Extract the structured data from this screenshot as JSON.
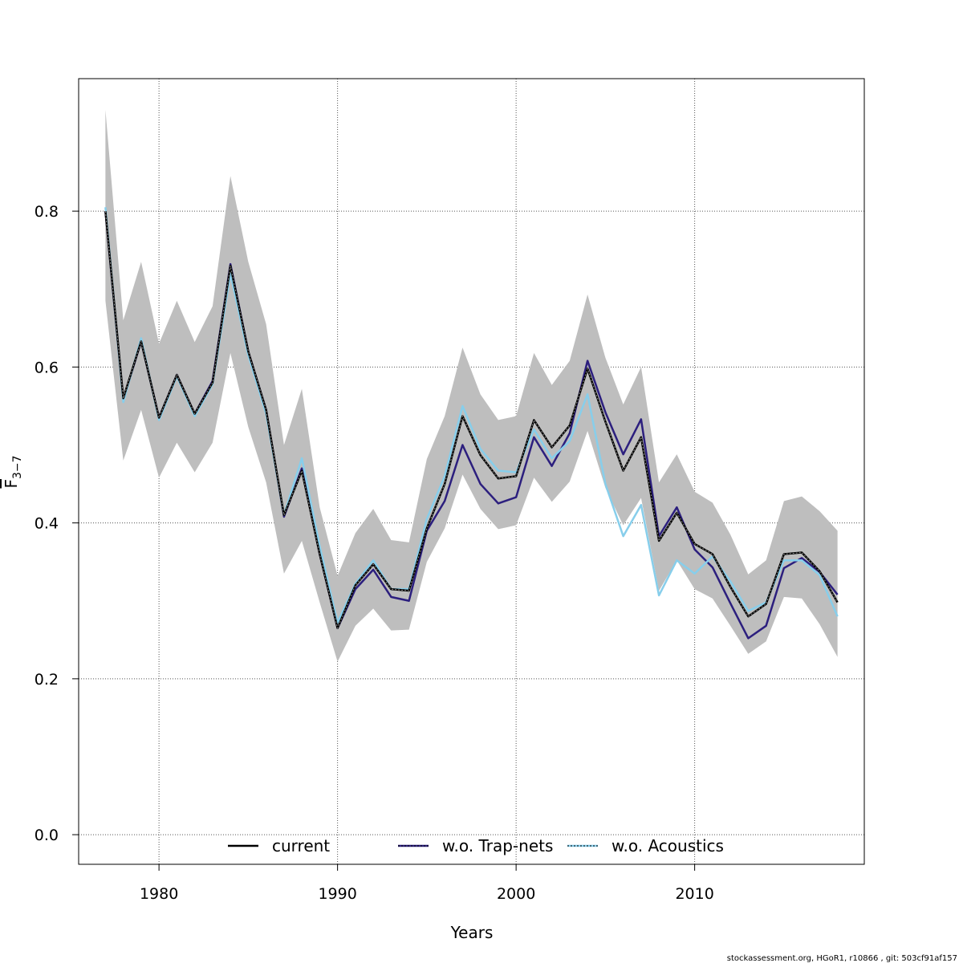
{
  "chart_data": {
    "type": "line",
    "xlabel": "Years",
    "ylabel_main": "F",
    "ylabel_sub": "3−7",
    "xlim": [
      1975.5,
      2019.5
    ],
    "ylim": [
      -0.038,
      0.97
    ],
    "xticks": [
      1980,
      1990,
      2000,
      2010
    ],
    "yticks": [
      0.0,
      0.2,
      0.4,
      0.6,
      0.8
    ],
    "ytick_labels": [
      "0.0",
      "0.2",
      "0.4",
      "0.6",
      "0.8"
    ],
    "grid": true,
    "legend_placement": "bottom",
    "x": [
      1977,
      1978,
      1979,
      1980,
      1981,
      1982,
      1983,
      1984,
      1985,
      1986,
      1987,
      1988,
      1989,
      1990,
      1991,
      1992,
      1993,
      1994,
      1995,
      1996,
      1997,
      1998,
      1999,
      2000,
      2001,
      2002,
      2003,
      2004,
      2005,
      2006,
      2007,
      2008,
      2009,
      2010,
      2011,
      2012,
      2013,
      2014,
      2015,
      2016,
      2017,
      2018
    ],
    "band": {
      "color": "#bebebe",
      "upper": [
        0.93,
        0.66,
        0.735,
        0.63,
        0.685,
        0.632,
        0.678,
        0.845,
        0.735,
        0.655,
        0.5,
        0.572,
        0.42,
        0.332,
        0.387,
        0.418,
        0.378,
        0.375,
        0.482,
        0.537,
        0.625,
        0.565,
        0.532,
        0.537,
        0.618,
        0.577,
        0.608,
        0.693,
        0.612,
        0.552,
        0.6,
        0.452,
        0.488,
        0.44,
        0.426,
        0.385,
        0.334,
        0.352,
        0.428,
        0.434,
        0.415,
        0.39
      ],
      "lower": [
        0.685,
        0.48,
        0.545,
        0.458,
        0.503,
        0.465,
        0.503,
        0.618,
        0.523,
        0.452,
        0.335,
        0.377,
        0.298,
        0.222,
        0.268,
        0.29,
        0.262,
        0.263,
        0.35,
        0.393,
        0.462,
        0.418,
        0.392,
        0.397,
        0.458,
        0.427,
        0.453,
        0.518,
        0.445,
        0.397,
        0.432,
        0.313,
        0.352,
        0.315,
        0.303,
        0.268,
        0.232,
        0.248,
        0.305,
        0.303,
        0.27,
        0.228
      ]
    },
    "series": [
      {
        "name": "current",
        "color": "#000000",
        "values": [
          0.8,
          0.56,
          0.633,
          0.535,
          0.59,
          0.54,
          0.58,
          0.73,
          0.62,
          0.545,
          0.41,
          0.467,
          0.36,
          0.265,
          0.32,
          0.347,
          0.315,
          0.313,
          0.393,
          0.45,
          0.537,
          0.487,
          0.457,
          0.46,
          0.532,
          0.497,
          0.525,
          0.598,
          0.53,
          0.467,
          0.51,
          0.377,
          0.413,
          0.373,
          0.36,
          0.318,
          0.28,
          0.296,
          0.36,
          0.362,
          0.338,
          0.298
        ]
      },
      {
        "name": "w.o. Trap-nets",
        "color": "#2c1f7e",
        "values": [
          0.8,
          0.558,
          0.633,
          0.535,
          0.59,
          0.54,
          0.582,
          0.732,
          0.62,
          0.545,
          0.408,
          0.47,
          0.36,
          0.265,
          0.315,
          0.34,
          0.305,
          0.3,
          0.39,
          0.428,
          0.5,
          0.45,
          0.425,
          0.433,
          0.51,
          0.473,
          0.515,
          0.608,
          0.542,
          0.488,
          0.533,
          0.383,
          0.42,
          0.366,
          0.343,
          0.297,
          0.252,
          0.268,
          0.342,
          0.355,
          0.337,
          0.308
        ]
      },
      {
        "name": "w.o. Acoustics",
        "color": "#87ceeb",
        "values": [
          0.805,
          0.555,
          0.637,
          0.532,
          0.588,
          0.537,
          0.578,
          0.72,
          0.615,
          0.54,
          0.41,
          0.483,
          0.37,
          0.272,
          0.322,
          0.352,
          0.315,
          0.315,
          0.405,
          0.46,
          0.55,
          0.495,
          0.467,
          0.465,
          0.52,
          0.483,
          0.505,
          0.565,
          0.45,
          0.383,
          0.423,
          0.307,
          0.352,
          0.335,
          0.357,
          0.325,
          0.287,
          0.298,
          0.352,
          0.352,
          0.333,
          0.28
        ]
      }
    ]
  },
  "legend": {
    "items": [
      "current",
      "w.o. Trap-nets",
      "w.o. Acoustics"
    ]
  },
  "footer": "stockassessment.org, HGoR1, r10866 , git: 503cf91af157"
}
